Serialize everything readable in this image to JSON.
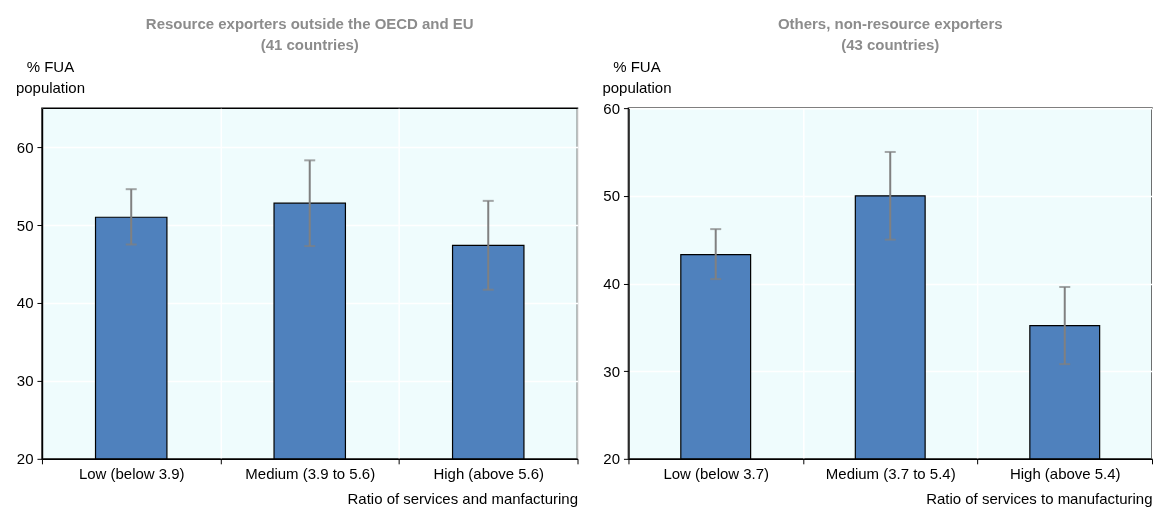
{
  "chart_data": [
    {
      "type": "bar",
      "title": "Resource exporters outside the OECD and EU\n(41 countries)",
      "ylabel": "% FUA\npopulation",
      "xlabel": "Ratio of services and manfacturing",
      "categories": [
        "Low (below 3.9)",
        "Medium (3.9 to 5.6)",
        "High (above 5.6)"
      ],
      "values": [
        51.0,
        52.8,
        47.4
      ],
      "errors": [
        [
          47.5,
          54.6
        ],
        [
          47.3,
          58.3
        ],
        [
          41.7,
          53.1
        ]
      ],
      "color": "#4f81bd",
      "ylim": [
        20,
        65
      ],
      "yticks": [
        20,
        30,
        40,
        50,
        60
      ],
      "grid": true
    },
    {
      "type": "bar",
      "title": "Others, non-resource exporters\n(43 countries)",
      "ylabel": "% FUA\npopulation",
      "xlabel": "Ratio of services to manufacturing",
      "categories": [
        "Low (below 3.7)",
        "Medium (3.7 to 5.4)",
        "High (above 5.4)"
      ],
      "values": [
        43.3,
        50.0,
        35.2
      ],
      "errors": [
        [
          40.5,
          46.2
        ],
        [
          45.0,
          55.0
        ],
        [
          30.8,
          39.6
        ]
      ],
      "color": "#4f81bd",
      "ylim": [
        20,
        60
      ],
      "yticks": [
        20,
        30,
        40,
        50,
        60
      ],
      "grid": true
    }
  ]
}
